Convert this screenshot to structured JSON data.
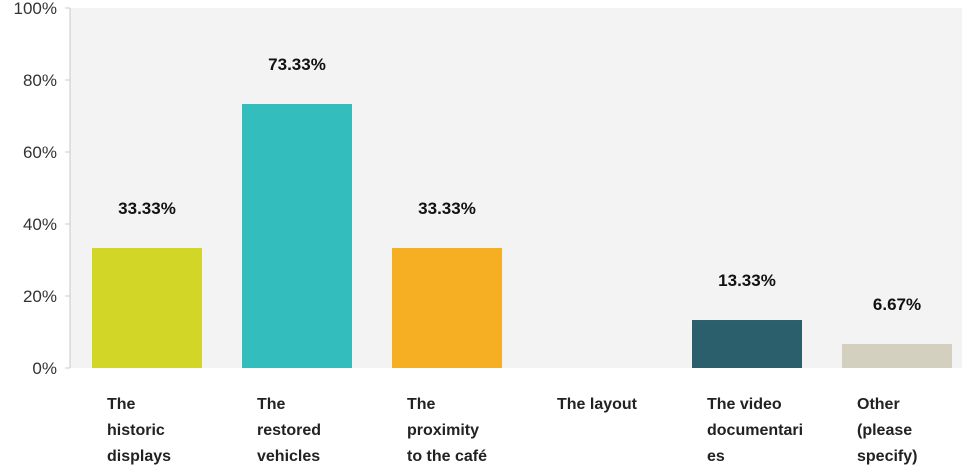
{
  "chart_data": {
    "type": "bar",
    "categories": [
      [
        "The",
        "historic",
        "displays"
      ],
      [
        "The",
        "restored",
        "vehicles"
      ],
      [
        "The",
        "proximity",
        "to the café"
      ],
      [
        "The layout"
      ],
      [
        "The video",
        "documentari",
        "es"
      ],
      [
        "Other",
        "(please",
        "specify)"
      ]
    ],
    "values": [
      33.33,
      73.33,
      33.33,
      0,
      13.33,
      6.67
    ],
    "value_labels": [
      "33.33%",
      "73.33%",
      "33.33%",
      "",
      "13.33%",
      "6.67%"
    ],
    "colors": [
      "#d1d627",
      "#33bdbd",
      "#f6ae22",
      "#cccccc",
      "#2c5f6c",
      "#d3d0bf"
    ],
    "y_ticks": [
      0,
      20,
      40,
      60,
      80,
      100
    ],
    "y_tick_labels": [
      "0%",
      "20%",
      "40%",
      "60%",
      "80%",
      "100%"
    ],
    "ylim": [
      0,
      100
    ],
    "grid": false,
    "background_color": "#f3f3f3",
    "title": "",
    "xlabel": "",
    "ylabel": ""
  }
}
